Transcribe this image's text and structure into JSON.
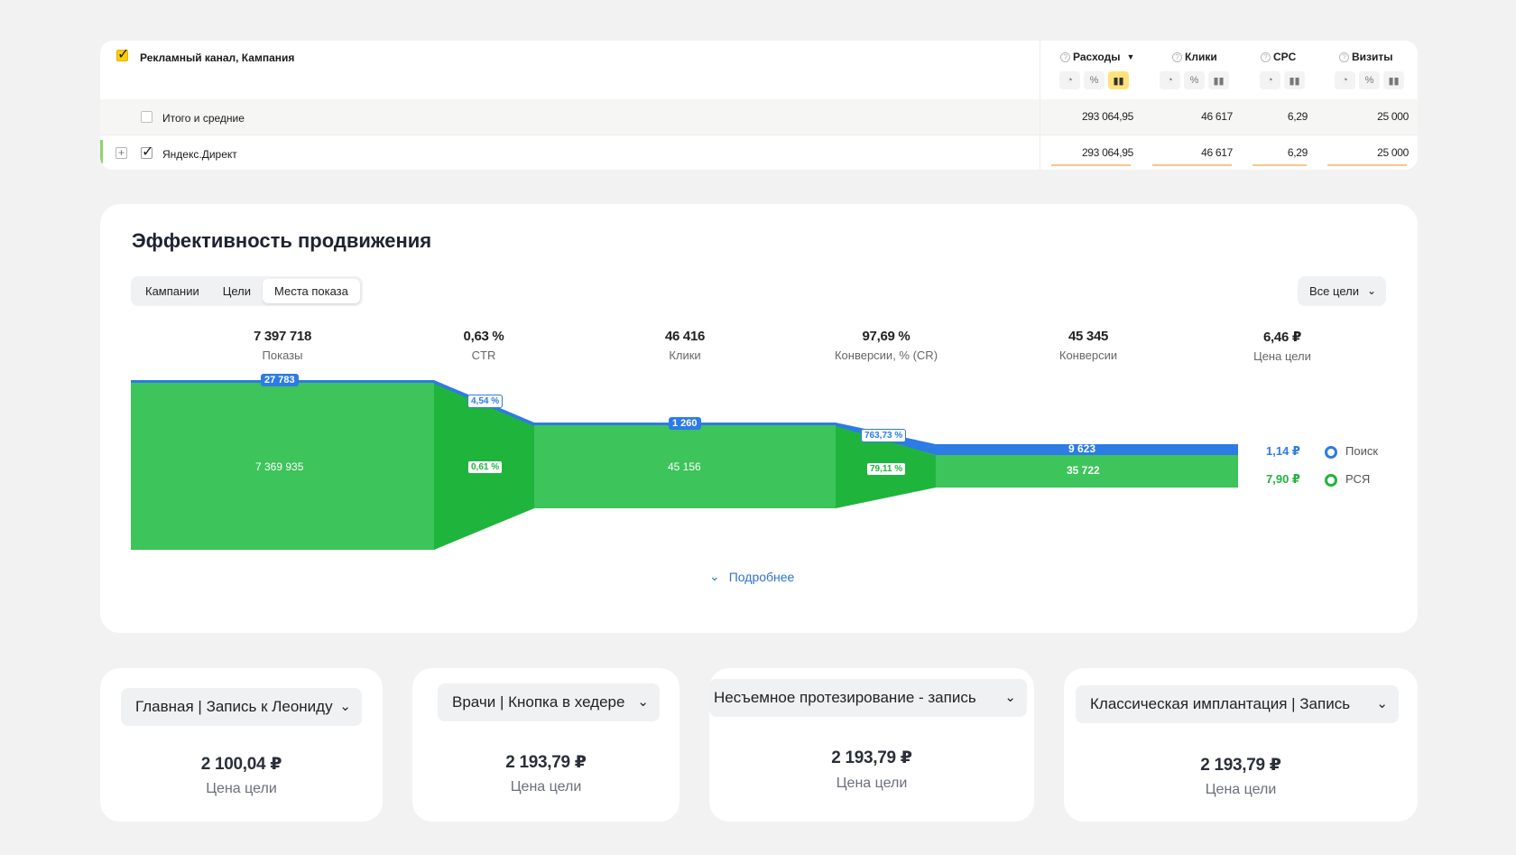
{
  "table": {
    "header_label": "Рекламный канал, Кампания",
    "columns": [
      {
        "name": "Расходы",
        "sorted": true
      },
      {
        "name": "Клики"
      },
      {
        "name": "CPC"
      },
      {
        "name": "Визиты"
      }
    ],
    "rows": [
      {
        "label": "Итого и средние",
        "checked": false,
        "values": [
          "293 064,95",
          "46 617",
          "6,29",
          "25 000"
        ]
      },
      {
        "label": "Яндекс.Директ",
        "checked": true,
        "values": [
          "293 064,95",
          "46 617",
          "6,29",
          "25 000"
        ]
      }
    ],
    "icons": {
      "pie": "pie-chart-icon",
      "percent": "percent-icon",
      "bars": "bar-chart-icon"
    }
  },
  "funnel": {
    "title": "Эффективность продвижения",
    "tabs": [
      {
        "label": "Кампании",
        "active": false
      },
      {
        "label": "Цели",
        "active": false
      },
      {
        "label": "Места показа",
        "active": true
      }
    ],
    "goal_select": "Все цели",
    "more_label": "Подробнее",
    "metrics": [
      {
        "value": "7 397 718",
        "label": "Показы"
      },
      {
        "value": "0,63 %",
        "label": "CTR"
      },
      {
        "value": "46 416",
        "label": "Клики"
      },
      {
        "value": "97,69 %",
        "label": "Конверсии, % (CR)"
      },
      {
        "value": "45 345",
        "label": "Конверсии"
      },
      {
        "value": "6,46 ₽",
        "label": "Цена цели"
      }
    ],
    "search_labels": {
      "shows": "27 783",
      "ctr": "4,54 %",
      "clicks": "1 260",
      "cr": "763,73 %",
      "conv": "9 623"
    },
    "rsya_labels": {
      "shows": "7 369 935",
      "ctr": "0,61 %",
      "clicks": "45 156",
      "cr": "79,11 %",
      "conv": "35 722"
    },
    "legend": [
      {
        "value": "1,14 ₽",
        "name": "Поиск",
        "color": "#2d7be5"
      },
      {
        "value": "7,90 ₽",
        "name": "РСЯ",
        "color": "#22b33e"
      }
    ],
    "colors": {
      "green": "#3dc45a",
      "green_dark": "#1fb53d",
      "blue": "#2d7be5"
    }
  },
  "goals": [
    {
      "name": "Главная | Запись к Леониду",
      "price": "2 100,04 ₽",
      "label": "Цена цели"
    },
    {
      "name": "Врачи | Кнопка в хедере",
      "price": "2 193,79 ₽",
      "label": "Цена цели"
    },
    {
      "name": "Несъемное протезирование - запись",
      "price": "2 193,79 ₽",
      "label": "Цена цели"
    },
    {
      "name": "Классическая имплантация | Запись",
      "price": "2 193,79 ₽",
      "label": "Цена цели"
    }
  ]
}
